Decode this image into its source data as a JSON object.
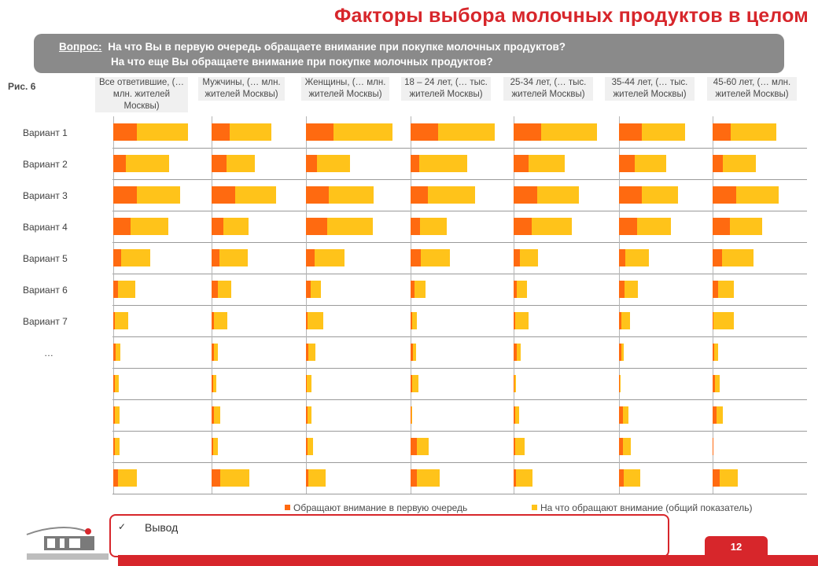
{
  "title": "Факторы выбора молочных продуктов в целом",
  "question": {
    "label": "Вопрос:",
    "line1": "На что Вы в первую очередь обращаете внимание при покупке молочных продуктов?",
    "line2": "На что еще Вы обращаете внимание при покупке молочных продуктов?"
  },
  "figure_label": "Рис. 6",
  "conclusion": {
    "check": "✓",
    "text": "Вывод"
  },
  "page_number": "12",
  "colors": {
    "first": "#ff6a10",
    "total": "#ffc31a",
    "accent": "#d7262b",
    "box": "#8a8a8a"
  },
  "chart_data": {
    "type": "bar",
    "stacked": true,
    "orientation": "horizontal",
    "value_axis_labels": false,
    "grid": "horizontal row separators",
    "panels": [
      "Все ответившие, (… млн. жителей Москвы)",
      "Мужчины, (… млн. жителей Москвы)",
      "Женщины, (… млн. жителей Москвы)",
      "18 – 24 лет, (… тыс. жителей Москвы)",
      "25-34 лет, (… тыс. жителей Москвы)",
      "35-44 лет, (… тыс. жителей Москвы)",
      "45-60 лет, (… млн. жителей Москвы)"
    ],
    "categories": [
      "Вариант 1",
      "Вариант 2",
      "Вариант 3",
      "Вариант 4",
      "Вариант 5",
      "Вариант 6",
      "Вариант 7",
      "…",
      "",
      "",
      "",
      ""
    ],
    "series": [
      {
        "name": "Обращают внимание в первую очередь",
        "values": [
          [
            30,
            16,
            30,
            22,
            10,
            6,
            2,
            3,
            2,
            2,
            2,
            6
          ],
          [
            23,
            19,
            30,
            15,
            10,
            8,
            3,
            3,
            2,
            3,
            2,
            11
          ],
          [
            35,
            14,
            29,
            27,
            11,
            6,
            2,
            3,
            1,
            2,
            2,
            3
          ],
          [
            35,
            11,
            22,
            12,
            13,
            5,
            2,
            3,
            2,
            1,
            8,
            8
          ],
          [
            35,
            19,
            30,
            23,
            8,
            4,
            2,
            4,
            1,
            2,
            2,
            3
          ],
          [
            29,
            20,
            29,
            23,
            8,
            7,
            3,
            3,
            1,
            5,
            5,
            6
          ],
          [
            23,
            13,
            30,
            22,
            12,
            7,
            1,
            2,
            3,
            5,
            1,
            9
          ]
        ]
      },
      {
        "name": "На что обращают внимание (общий показатель)",
        "values": [
          [
            65,
            55,
            55,
            48,
            37,
            22,
            17,
            6,
            5,
            6,
            6,
            24
          ],
          [
            53,
            36,
            52,
            32,
            36,
            17,
            17,
            5,
            4,
            8,
            6,
            37
          ],
          [
            75,
            42,
            57,
            58,
            38,
            13,
            20,
            9,
            6,
            5,
            7,
            22
          ],
          [
            72,
            61,
            60,
            34,
            37,
            14,
            6,
            4,
            8,
            1,
            15,
            29
          ],
          [
            71,
            46,
            53,
            51,
            23,
            13,
            17,
            5,
            2,
            5,
            12,
            21
          ],
          [
            55,
            40,
            46,
            43,
            30,
            17,
            11,
            3,
            1,
            7,
            10,
            21
          ],
          [
            58,
            42,
            54,
            41,
            40,
            20,
            26,
            5,
            6,
            8,
            0,
            23
          ]
        ]
      }
    ],
    "scale_max": 100
  }
}
